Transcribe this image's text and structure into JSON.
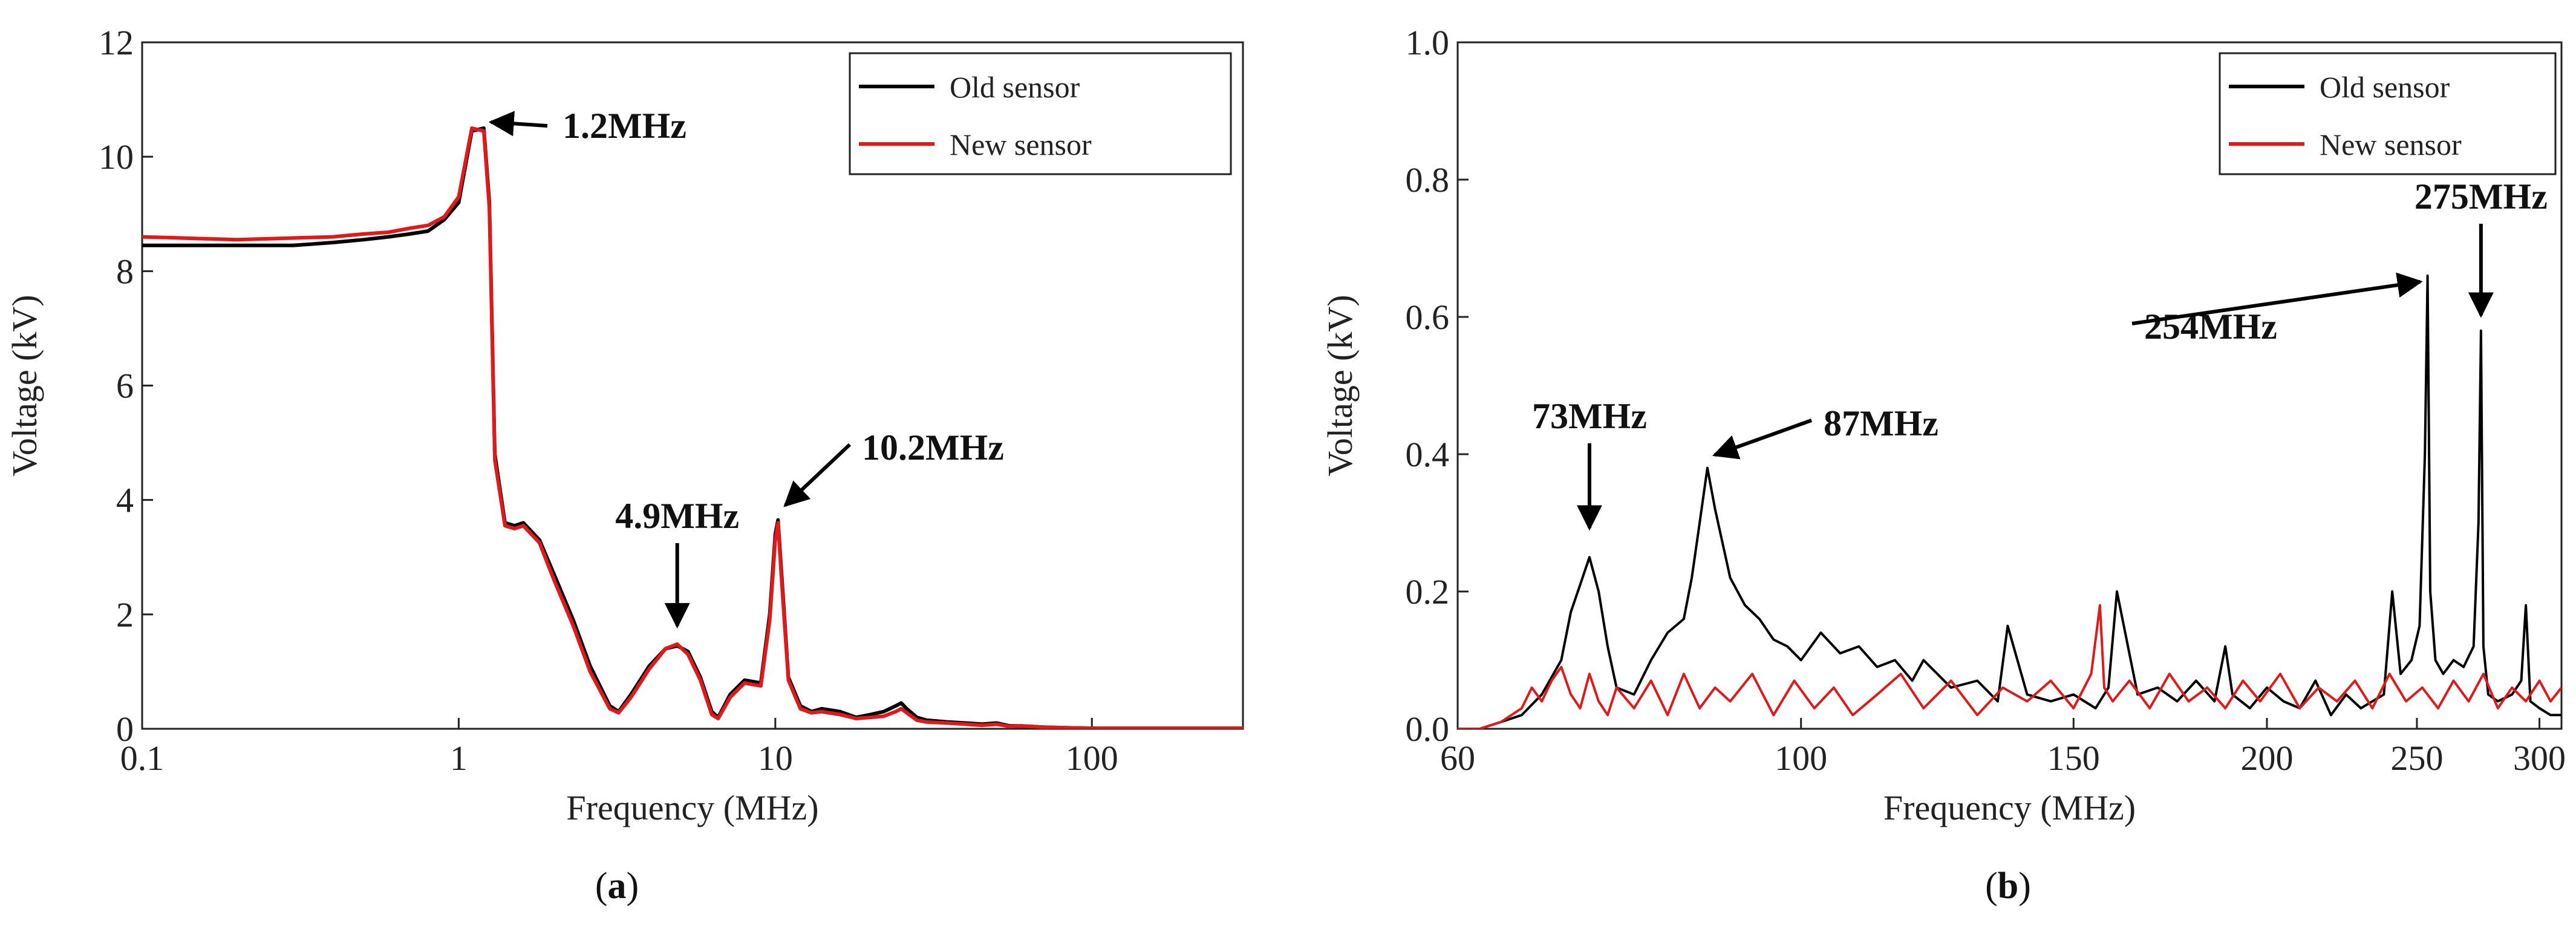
{
  "chart_data": [
    {
      "panel": "(a)",
      "panel_label": "a",
      "type": "line",
      "xscale": "log",
      "xlabel": "Frequency (MHz)",
      "ylabel": "Voltage (kV)",
      "xlim": [
        0.1,
        300
      ],
      "ylim": [
        0,
        12
      ],
      "xticks": [
        0.1,
        1,
        10,
        100
      ],
      "xtick_labels": [
        "0.1",
        "1",
        "10",
        "100"
      ],
      "yticks": [
        0,
        2,
        4,
        6,
        8,
        10,
        12
      ],
      "ytick_labels": [
        "0",
        "2",
        "4",
        "6",
        "8",
        "10",
        "12"
      ],
      "legend_position": "top-right",
      "series": [
        {
          "name": "Old sensor",
          "color": "#000000",
          "x": [
            0.1,
            0.2,
            0.3,
            0.4,
            0.5,
            0.6,
            0.7,
            0.8,
            0.9,
            1.0,
            1.1,
            1.2,
            1.25,
            1.3,
            1.4,
            1.5,
            1.6,
            1.8,
            2.0,
            2.3,
            2.6,
            3.0,
            3.2,
            3.5,
            4.0,
            4.5,
            4.9,
            5.3,
            5.8,
            6.3,
            6.6,
            7.2,
            8.0,
            9.0,
            9.6,
            10.0,
            10.2,
            10.5,
            11.0,
            12,
            13,
            14,
            16,
            18,
            20,
            22,
            24,
            25,
            26,
            28,
            30,
            35,
            40,
            45,
            50,
            55,
            60,
            70,
            80,
            100,
            150,
            200,
            300
          ],
          "y": [
            8.45,
            8.45,
            8.45,
            8.5,
            8.55,
            8.6,
            8.65,
            8.7,
            8.9,
            9.2,
            10.45,
            10.5,
            9.2,
            4.8,
            3.6,
            3.55,
            3.6,
            3.3,
            2.7,
            1.9,
            1.1,
            0.4,
            0.3,
            0.6,
            1.1,
            1.4,
            1.45,
            1.35,
            0.9,
            0.3,
            0.2,
            0.6,
            0.85,
            0.8,
            2.0,
            3.4,
            3.65,
            2.6,
            0.9,
            0.4,
            0.3,
            0.35,
            0.3,
            0.2,
            0.25,
            0.3,
            0.4,
            0.45,
            0.35,
            0.2,
            0.15,
            0.12,
            0.1,
            0.08,
            0.1,
            0.05,
            0.05,
            0.03,
            0.02,
            0.01,
            0.01,
            0.01,
            0.01
          ]
        },
        {
          "name": "New sensor",
          "color": "#e01a1a",
          "x": [
            0.1,
            0.2,
            0.3,
            0.4,
            0.5,
            0.6,
            0.7,
            0.8,
            0.9,
            1.0,
            1.1,
            1.2,
            1.25,
            1.3,
            1.4,
            1.5,
            1.6,
            1.8,
            2.0,
            2.3,
            2.6,
            3.0,
            3.2,
            3.5,
            4.0,
            4.5,
            4.9,
            5.3,
            5.8,
            6.3,
            6.6,
            7.2,
            8.0,
            9.0,
            9.6,
            10.0,
            10.2,
            10.5,
            11.0,
            12,
            13,
            14,
            16,
            18,
            20,
            22,
            24,
            25,
            26,
            28,
            30,
            35,
            40,
            45,
            50,
            55,
            60,
            70,
            80,
            100,
            150,
            200,
            300
          ],
          "y": [
            8.6,
            8.55,
            8.58,
            8.6,
            8.65,
            8.68,
            8.75,
            8.8,
            8.95,
            9.3,
            10.5,
            10.45,
            9.1,
            4.7,
            3.55,
            3.5,
            3.55,
            3.25,
            2.6,
            1.8,
            1.0,
            0.35,
            0.28,
            0.55,
            1.05,
            1.4,
            1.48,
            1.3,
            0.85,
            0.25,
            0.18,
            0.55,
            0.8,
            0.75,
            1.9,
            3.3,
            3.6,
            2.5,
            0.85,
            0.35,
            0.28,
            0.3,
            0.25,
            0.18,
            0.2,
            0.22,
            0.3,
            0.35,
            0.28,
            0.15,
            0.12,
            0.1,
            0.08,
            0.06,
            0.08,
            0.04,
            0.05,
            0.03,
            0.02,
            0.01,
            0.01,
            0.01,
            0.01
          ]
        }
      ],
      "annotations": [
        {
          "text": "1.2MHz",
          "target_x": 1.2,
          "target_y": 10.5
        },
        {
          "text": "4.9MHz",
          "target_x": 4.9,
          "target_y": 1.65
        },
        {
          "text": "10.2MHz",
          "target_x": 10.2,
          "target_y": 3.8
        }
      ]
    },
    {
      "panel": "(b)",
      "panel_label": "b",
      "type": "line",
      "xscale": "log",
      "xlabel": "Frequency (MHz)",
      "ylabel": "Voltage (kV)",
      "xlim": [
        60,
        310
      ],
      "ylim": [
        0,
        1.0
      ],
      "xticks": [
        60,
        100,
        150,
        200,
        250,
        300
      ],
      "xtick_labels": [
        "60",
        "100",
        "150",
        "200",
        "250",
        "300"
      ],
      "yticks": [
        0.0,
        0.2,
        0.4,
        0.6,
        0.8,
        1.0
      ],
      "ytick_labels": [
        "0.0",
        "0.2",
        "0.4",
        "0.6",
        "0.8",
        "1.0"
      ],
      "legend_position": "top-right",
      "series": [
        {
          "name": "Old sensor",
          "color": "#000000",
          "x": [
            60,
            62,
            64,
            66,
            68,
            70,
            71,
            72,
            73,
            74,
            75,
            76,
            78,
            80,
            82,
            84,
            85,
            86,
            87,
            88,
            90,
            92,
            94,
            96,
            98,
            100,
            103,
            106,
            109,
            112,
            115,
            118,
            120,
            125,
            130,
            134,
            136,
            140,
            145,
            150,
            155,
            158,
            160,
            165,
            170,
            175,
            180,
            185,
            188,
            190,
            195,
            200,
            205,
            210,
            215,
            220,
            225,
            230,
            238,
            241,
            244,
            248,
            251,
            253,
            254,
            255,
            257,
            260,
            264,
            268,
            272,
            274,
            275,
            276,
            278,
            282,
            288,
            292,
            294,
            296,
            300,
            305,
            310
          ],
          "y": [
            0.0,
            0.0,
            0.01,
            0.02,
            0.05,
            0.1,
            0.17,
            0.21,
            0.25,
            0.2,
            0.12,
            0.06,
            0.05,
            0.1,
            0.14,
            0.16,
            0.22,
            0.3,
            0.38,
            0.32,
            0.22,
            0.18,
            0.16,
            0.13,
            0.12,
            0.1,
            0.14,
            0.11,
            0.12,
            0.09,
            0.1,
            0.07,
            0.1,
            0.06,
            0.07,
            0.04,
            0.15,
            0.05,
            0.04,
            0.05,
            0.03,
            0.06,
            0.2,
            0.05,
            0.06,
            0.04,
            0.07,
            0.04,
            0.12,
            0.05,
            0.03,
            0.06,
            0.04,
            0.03,
            0.07,
            0.02,
            0.05,
            0.03,
            0.05,
            0.2,
            0.08,
            0.1,
            0.15,
            0.4,
            0.66,
            0.2,
            0.1,
            0.08,
            0.1,
            0.09,
            0.12,
            0.3,
            0.58,
            0.12,
            0.05,
            0.04,
            0.05,
            0.07,
            0.18,
            0.04,
            0.03,
            0.02,
            0.02
          ]
        },
        {
          "name": "New sensor",
          "color": "#e01a1a",
          "x": [
            60,
            62,
            64,
            66,
            67,
            68,
            69,
            70,
            71,
            72,
            73,
            74,
            75,
            76,
            78,
            80,
            82,
            84,
            86,
            88,
            90,
            93,
            96,
            99,
            102,
            105,
            108,
            112,
            116,
            120,
            125,
            130,
            135,
            140,
            145,
            150,
            154,
            156,
            157,
            159,
            163,
            168,
            173,
            178,
            183,
            188,
            193,
            198,
            204,
            210,
            216,
            222,
            228,
            234,
            240,
            246,
            252,
            258,
            264,
            270,
            276,
            282,
            288,
            294,
            300,
            305,
            310
          ],
          "y": [
            0.0,
            0.0,
            0.01,
            0.03,
            0.06,
            0.04,
            0.07,
            0.09,
            0.05,
            0.03,
            0.08,
            0.04,
            0.02,
            0.06,
            0.03,
            0.07,
            0.02,
            0.08,
            0.03,
            0.06,
            0.04,
            0.08,
            0.02,
            0.07,
            0.03,
            0.06,
            0.02,
            0.05,
            0.08,
            0.03,
            0.07,
            0.02,
            0.06,
            0.04,
            0.07,
            0.03,
            0.08,
            0.18,
            0.06,
            0.04,
            0.07,
            0.03,
            0.08,
            0.04,
            0.06,
            0.03,
            0.07,
            0.04,
            0.08,
            0.03,
            0.06,
            0.04,
            0.07,
            0.03,
            0.08,
            0.04,
            0.06,
            0.03,
            0.07,
            0.04,
            0.08,
            0.03,
            0.06,
            0.04,
            0.07,
            0.04,
            0.06
          ]
        }
      ],
      "annotations": [
        {
          "text": "73MHz",
          "target_x": 73,
          "target_y": 0.28
        },
        {
          "text": "87MHz",
          "target_x": 87,
          "target_y": 0.39
        },
        {
          "text": "254MHz",
          "target_x": 254,
          "target_y": 0.66
        },
        {
          "text": "275MHz",
          "target_x": 275,
          "target_y": 0.59
        }
      ]
    }
  ]
}
